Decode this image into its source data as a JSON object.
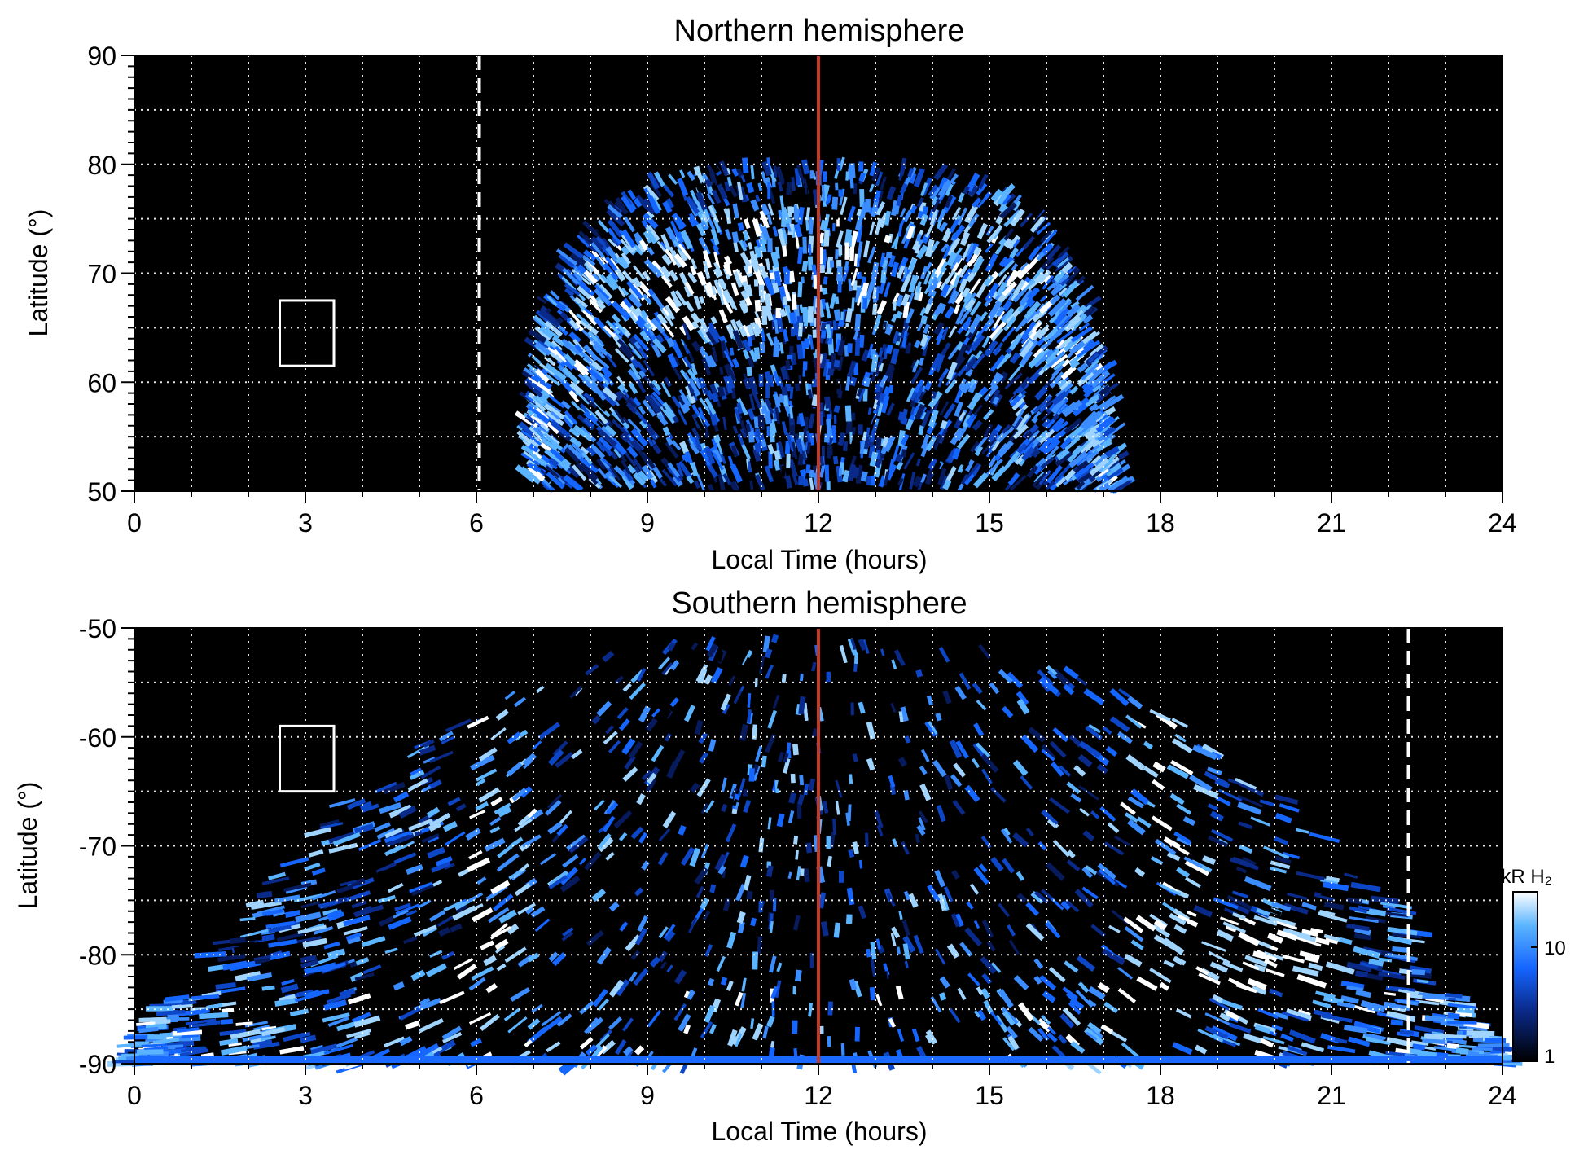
{
  "chart_data": [
    {
      "type": "heatmap",
      "title": "Northern hemisphere",
      "xlabel": "Local Time (hours)",
      "ylabel": "Latitude (°)",
      "xlim": [
        0,
        24
      ],
      "ylim": [
        50,
        90
      ],
      "xticks": [
        "0",
        "3",
        "6",
        "9",
        "12",
        "15",
        "18",
        "21",
        "24"
      ],
      "yticks": [
        "50",
        "60",
        "70",
        "80",
        "90"
      ],
      "grid": true,
      "background": "#000000",
      "auroral_oval": {
        "local_time_range": [
          7.0,
          17.2
        ],
        "main_oval_latitude_range": [
          64,
          80
        ],
        "brightest_region": {
          "local_time": [
            9.5,
            11
          ],
          "latitude": [
            65,
            70
          ]
        }
      },
      "annotations": {
        "noon_line_local_time": 12,
        "noon_line_color": "#c8381e",
        "dashed_line_local_time": 6.05,
        "box": {
          "local_time": [
            2.55,
            3.5
          ],
          "latitude": [
            61.5,
            67.5
          ]
        }
      }
    },
    {
      "type": "heatmap",
      "title": "Southern hemisphere",
      "xlabel": "Local Time (hours)",
      "ylabel": "Latitude (°)",
      "xlim": [
        0,
        24
      ],
      "ylim": [
        -90,
        -50
      ],
      "xticks": [
        "0",
        "3",
        "6",
        "9",
        "12",
        "15",
        "18",
        "21",
        "24"
      ],
      "yticks": [
        "-90",
        "-80",
        "-70",
        "-60",
        "-50"
      ],
      "grid": true,
      "background": "#000000",
      "auroral_oval": {
        "local_time_range": [
          0.0,
          24.0
        ],
        "oval_arcs_local_time": [
          6.5,
          17.9
        ],
        "brightest_region": {
          "local_time": [
            17.5,
            21
          ],
          "latitude": [
            -83,
            -76
          ]
        }
      },
      "annotations": {
        "noon_line_local_time": 12,
        "noon_line_color": "#c8381e",
        "dashed_line_local_time": 22.35,
        "box": {
          "local_time": [
            2.55,
            3.5
          ],
          "latitude": [
            -65,
            -59
          ]
        }
      },
      "colorbar": {
        "label": "kR H₂",
        "ticks": [
          "1",
          "10"
        ],
        "scale": "log",
        "colors": [
          "#000000",
          "#0a2a8a",
          "#1565ff",
          "#5ab4ff",
          "#ffffff"
        ]
      }
    }
  ]
}
